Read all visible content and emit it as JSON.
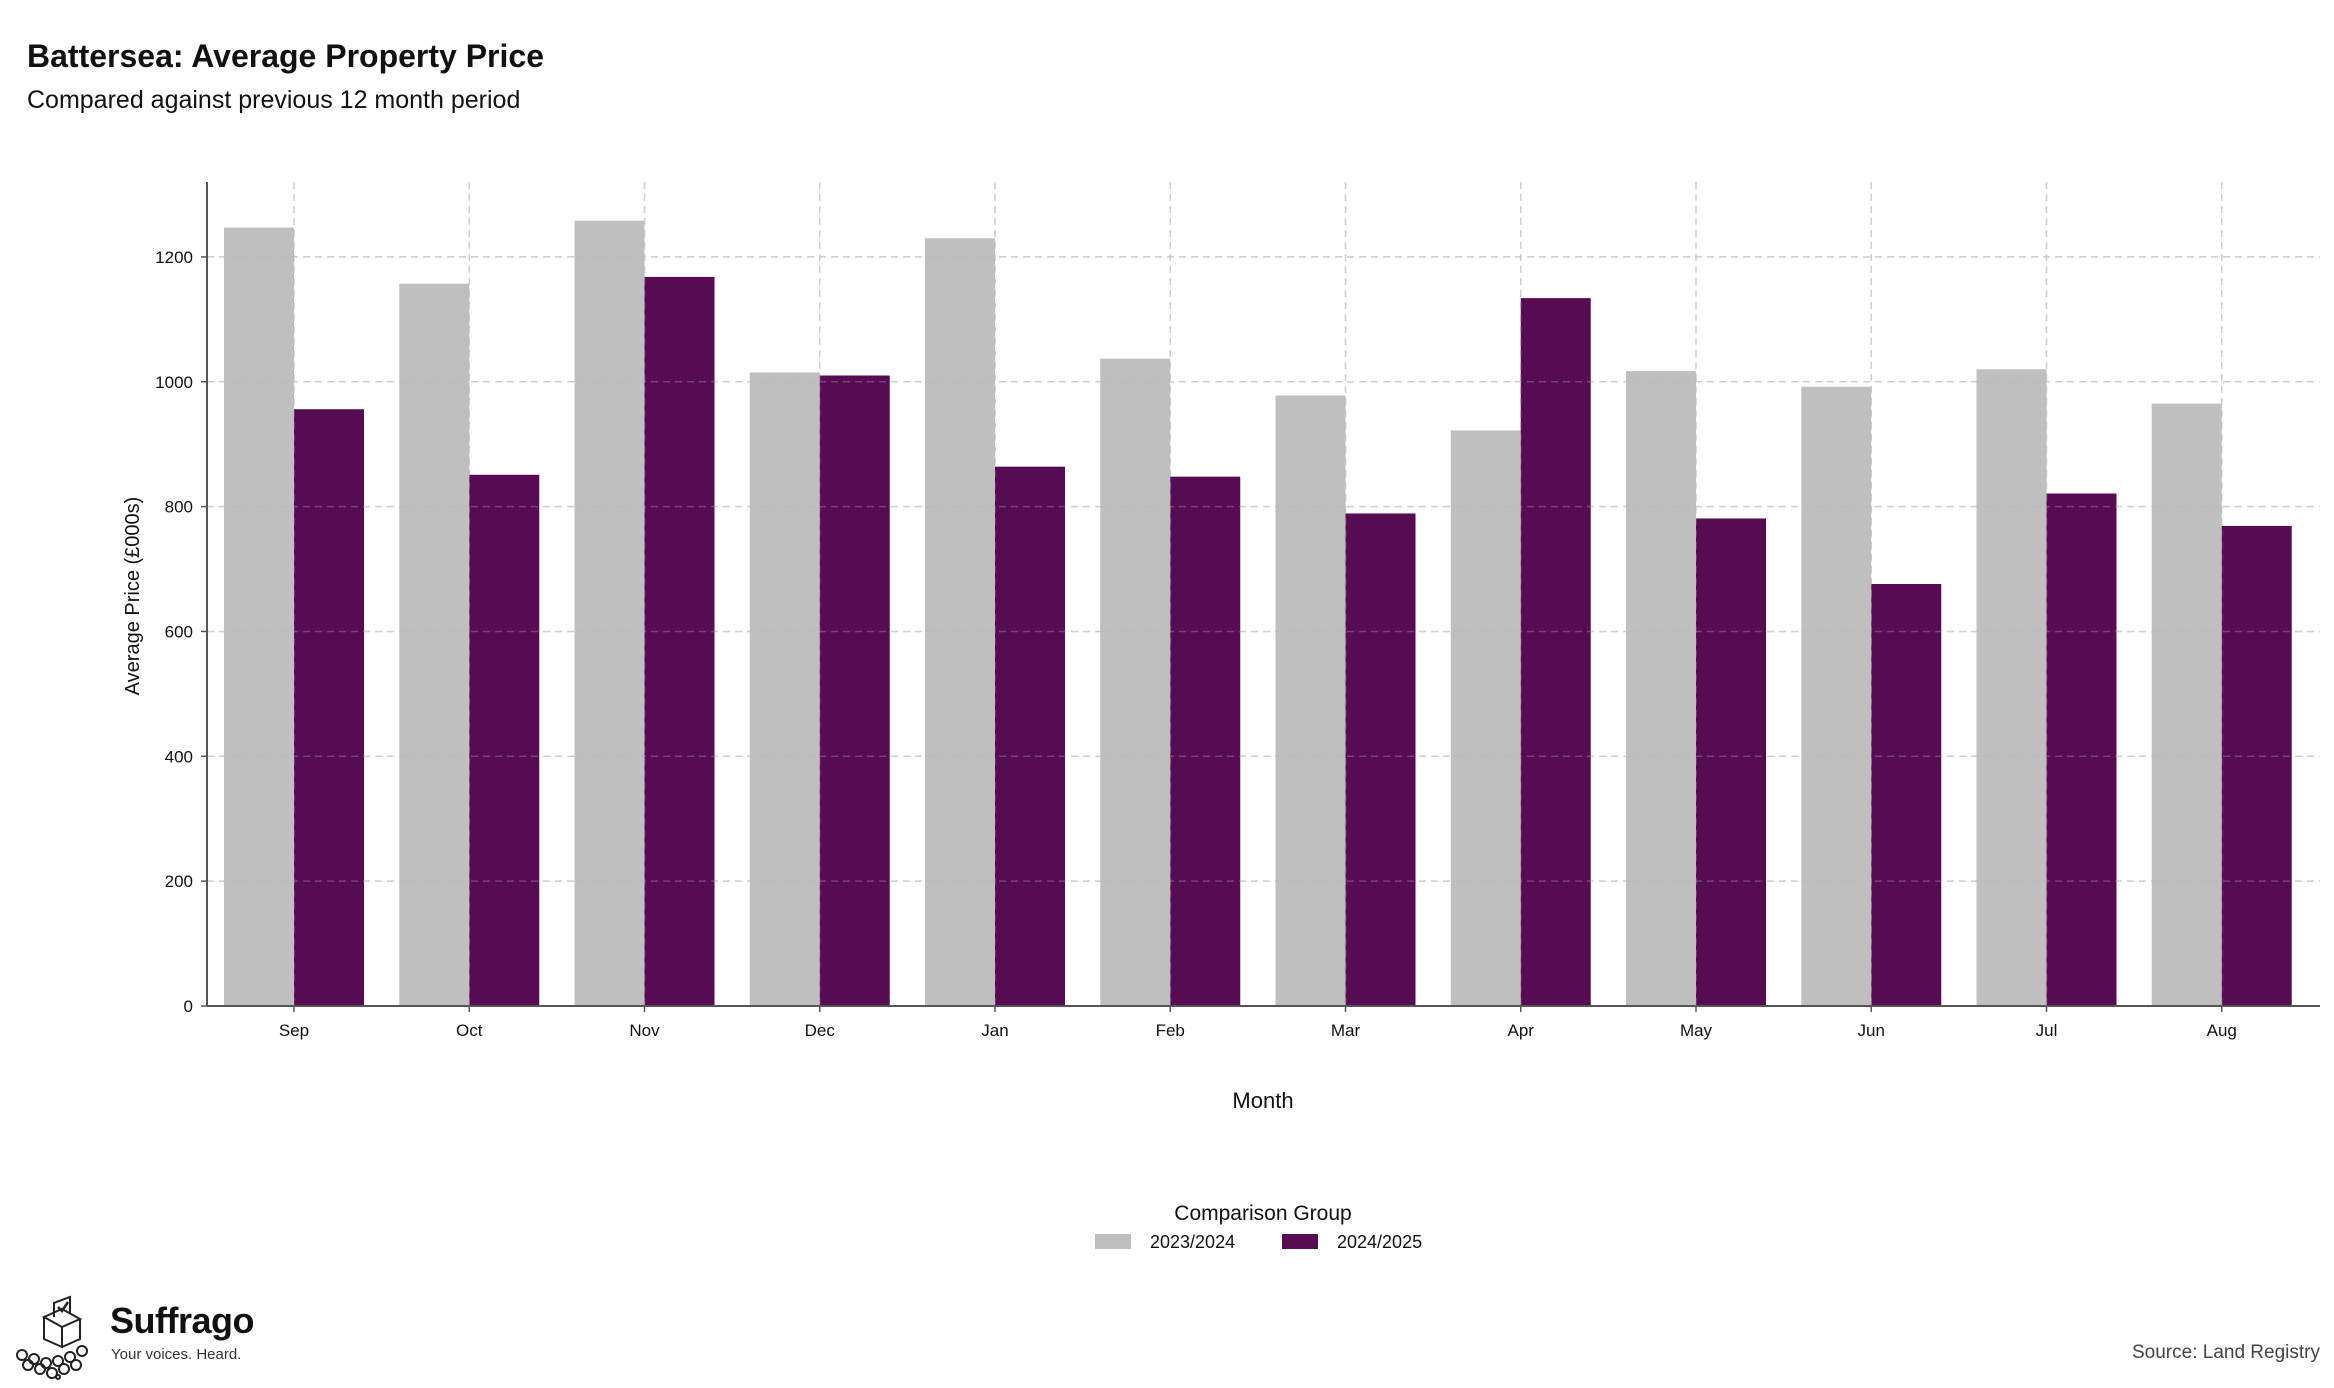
{
  "header": {
    "title": "Battersea: Average Property Price",
    "subtitle": "Compared against previous 12 month period"
  },
  "footer": {
    "brand_name": "Suffrago",
    "brand_tagline": "Your voices. Heard.",
    "source": "Source: Land Registry"
  },
  "chart_data": {
    "type": "bar",
    "xlabel": "Month",
    "ylabel": "Average Price (£000s)",
    "ylim": [
      0,
      1320
    ],
    "yticks": [
      0,
      200,
      400,
      600,
      800,
      1000,
      1200
    ],
    "grid": true,
    "legend_title": "Comparison Group",
    "legend_position": "bottom",
    "categories": [
      "Sep",
      "Oct",
      "Nov",
      "Dec",
      "Jan",
      "Feb",
      "Mar",
      "Apr",
      "May",
      "Jun",
      "Jul",
      "Aug"
    ],
    "series": [
      {
        "name": "2023/2024",
        "color": "#bfbfbf",
        "values": [
          1247,
          1157,
          1258,
          1015,
          1230,
          1037,
          978,
          922,
          1017,
          992,
          1020,
          965
        ]
      },
      {
        "name": "2024/2025",
        "color": "#560b52",
        "values": [
          956,
          851,
          1168,
          1010,
          864,
          848,
          789,
          1134,
          781,
          676,
          821,
          769
        ]
      }
    ]
  }
}
